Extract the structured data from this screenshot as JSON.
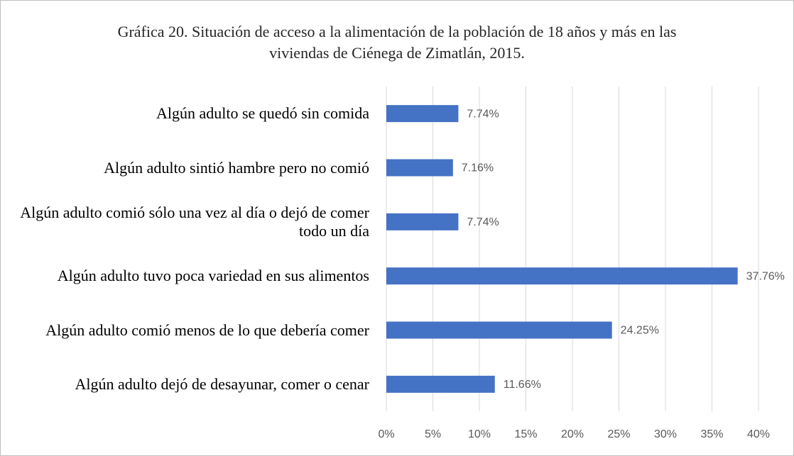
{
  "chart_data": {
    "type": "bar",
    "orientation": "horizontal",
    "title": "Gráfica 20. Situación de acceso a la alimentación de la población de 18 años y más en las viviendas de Ciénega de Zimatlán, 2015.",
    "categories": [
      "Algún adulto se quedó sin comida",
      "Algún adulto sintió hambre pero no comió",
      "Algún adulto comió sólo una vez al día o dejó de comer todo un día",
      "Algún adulto tuvo poca variedad en sus alimentos",
      "Algún adulto comió menos de lo que debería comer",
      "Algún adulto dejó de desayunar, comer o cenar"
    ],
    "values": [
      7.74,
      7.16,
      7.74,
      37.76,
      24.25,
      11.66
    ],
    "value_labels": [
      "7.74%",
      "7.16%",
      "7.74%",
      "37.76%",
      "24.25%",
      "11.66%"
    ],
    "color": "#4472c4",
    "xlim": [
      0,
      40
    ],
    "xticks": [
      {
        "value": 0,
        "label": "0%"
      },
      {
        "value": 5,
        "label": "5%"
      },
      {
        "value": 10,
        "label": "10%"
      },
      {
        "value": 15,
        "label": "15%"
      },
      {
        "value": 20,
        "label": "20%"
      },
      {
        "value": 25,
        "label": "25%"
      },
      {
        "value": 30,
        "label": "30%"
      },
      {
        "value": 35,
        "label": "35%"
      },
      {
        "value": 40,
        "label": "40%"
      }
    ],
    "grid": true
  }
}
